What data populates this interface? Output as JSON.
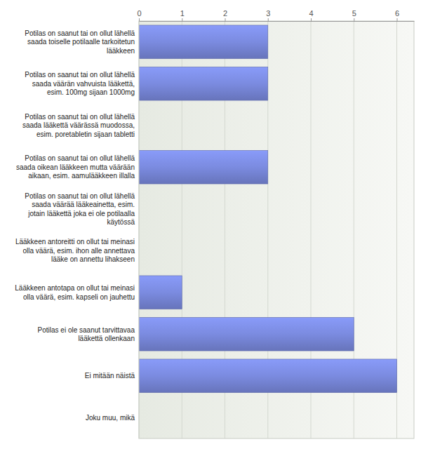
{
  "chart_data": {
    "type": "bar",
    "orientation": "horizontal",
    "categories": [
      "Potilas on saanut tai on ollut lähellä saada toiselle potilaalle tarkoitetun lääkkeen",
      "Potilas on saanut tai on ollut lähellä saada väärän vahvuista lääkettä, esim. 100mg sijaan 1000mg",
      "Potilas on saanut tai on ollut lähellä saada lääkettä väärässä muodossa, esim. poretabletin sijaan tabletti",
      "Potilas on saanut tai on ollut lähellä saada oikean lääkkeen mutta väärään aikaan, esim. aamulääkkeen illalla",
      "Potilas on saanut tai on ollut lähellä saada väärää lääkeainetta, esim. jotain lääkettä joka ei ole potilaalla käytössä",
      "Lääkkeen antoreitti on ollut tai meinasi olla väärä, esim. ihon alle annettava lääke on annettu lihakseen",
      "Lääkkeen antotapa on ollut tai meinasi olla väärä, esim. kapseli on jauhettu",
      "Potilas ei ole saanut tarvittavaa lääkettä ollenkaan",
      "Ei mitään näistä",
      "Joku muu, mikä"
    ],
    "values": [
      3,
      3,
      0,
      3,
      0,
      0,
      1,
      5,
      6,
      0
    ],
    "color": "#7b8be0",
    "xlim": [
      0,
      6.4
    ],
    "xticks": [
      0,
      1,
      2,
      3,
      4,
      5,
      6
    ],
    "grid": true
  }
}
